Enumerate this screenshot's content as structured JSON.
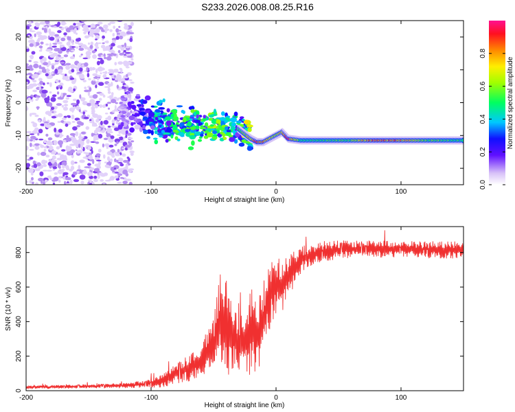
{
  "title": "S233.2026.008.08.25.R16",
  "colors": {
    "snr_line": "#f03030",
    "spec_low": "#e0ccf8",
    "spec_mid": "#1a10ff",
    "spec_high": "#ff1a55"
  },
  "chart_data": [
    {
      "type": "heatmap",
      "name": "spectrogram",
      "xlabel": "Height of straight line (km)",
      "ylabel": "Frequency (Hz)",
      "xlim": [
        -200,
        150
      ],
      "ylim": [
        -25,
        25
      ],
      "xticks": [
        -200,
        -100,
        0,
        100
      ],
      "yticks": [
        -20,
        -10,
        0,
        10,
        20
      ],
      "xtick_labels": [
        "-200",
        "-100",
        "0",
        "100"
      ],
      "ytick_labels": [
        "-20",
        "-10",
        "0",
        "10",
        "20"
      ],
      "colorbar": {
        "label": "Normalized spectral amplitude",
        "range": [
          0,
          1
        ],
        "ticks": [
          0.0,
          0.2,
          0.4,
          0.6,
          0.8
        ],
        "tick_labels": [
          "0.0",
          "0.2",
          "0.4",
          "0.6",
          "0.8"
        ]
      },
      "ridge": {
        "x": [
          -120,
          -110,
          -100,
          -90,
          -80,
          -70,
          -60,
          -50,
          -40,
          -30,
          -20,
          -15,
          -10,
          -5,
          0,
          5,
          10,
          20,
          40,
          60,
          80,
          100,
          120,
          150
        ],
        "freq": [
          -3,
          -4,
          -5,
          -6,
          -6.5,
          -7,
          -7,
          -7,
          -7,
          -8,
          -11,
          -12,
          -12,
          -11,
          -10,
          -9,
          -11,
          -11.5,
          -11.5,
          -11.5,
          -11.5,
          -11.5,
          -11.5,
          -11.5
        ],
        "amplitude": [
          0.15,
          0.2,
          0.4,
          0.45,
          0.5,
          0.5,
          0.5,
          0.55,
          0.55,
          0.5,
          0.7,
          0.95,
          0.8,
          0.7,
          0.6,
          0.75,
          0.9,
          0.5,
          0.5,
          0.55,
          0.85,
          0.8,
          0.55,
          0.5
        ]
      },
      "scatter_region": {
        "xmin": -200,
        "xmax": -115,
        "freq_min": -25,
        "freq_max": 25,
        "amplitude": 0.05
      }
    },
    {
      "type": "line",
      "name": "snr",
      "xlabel": "Height of straight line (km)",
      "ylabel": "SNR (10 * v/v)",
      "xlim": [
        -200,
        150
      ],
      "ylim": [
        0,
        950
      ],
      "xticks": [
        -200,
        -100,
        0,
        100
      ],
      "yticks": [
        0,
        200,
        400,
        600,
        800
      ],
      "xtick_labels": [
        "-200",
        "-100",
        "0",
        "100"
      ],
      "ytick_labels": [
        "0",
        "200",
        "400",
        "600",
        "800"
      ],
      "envelope": {
        "x": [
          -200,
          -150,
          -120,
          -100,
          -90,
          -80,
          -70,
          -60,
          -50,
          -45,
          -40,
          -35,
          -30,
          -25,
          -20,
          -15,
          -10,
          -5,
          0,
          5,
          10,
          20,
          30,
          40,
          60,
          80,
          100,
          120,
          150
        ],
        "y": [
          20,
          25,
          30,
          40,
          60,
          100,
          130,
          170,
          260,
          420,
          380,
          310,
          260,
          280,
          350,
          320,
          420,
          560,
          620,
          600,
          660,
          760,
          790,
          810,
          820,
          820,
          820,
          815,
          815
        ],
        "spread": [
          10,
          12,
          15,
          25,
          40,
          60,
          80,
          110,
          150,
          260,
          300,
          200,
          160,
          200,
          260,
          220,
          200,
          220,
          200,
          160,
          120,
          80,
          60,
          60,
          50,
          50,
          50,
          50,
          50
        ]
      }
    }
  ]
}
